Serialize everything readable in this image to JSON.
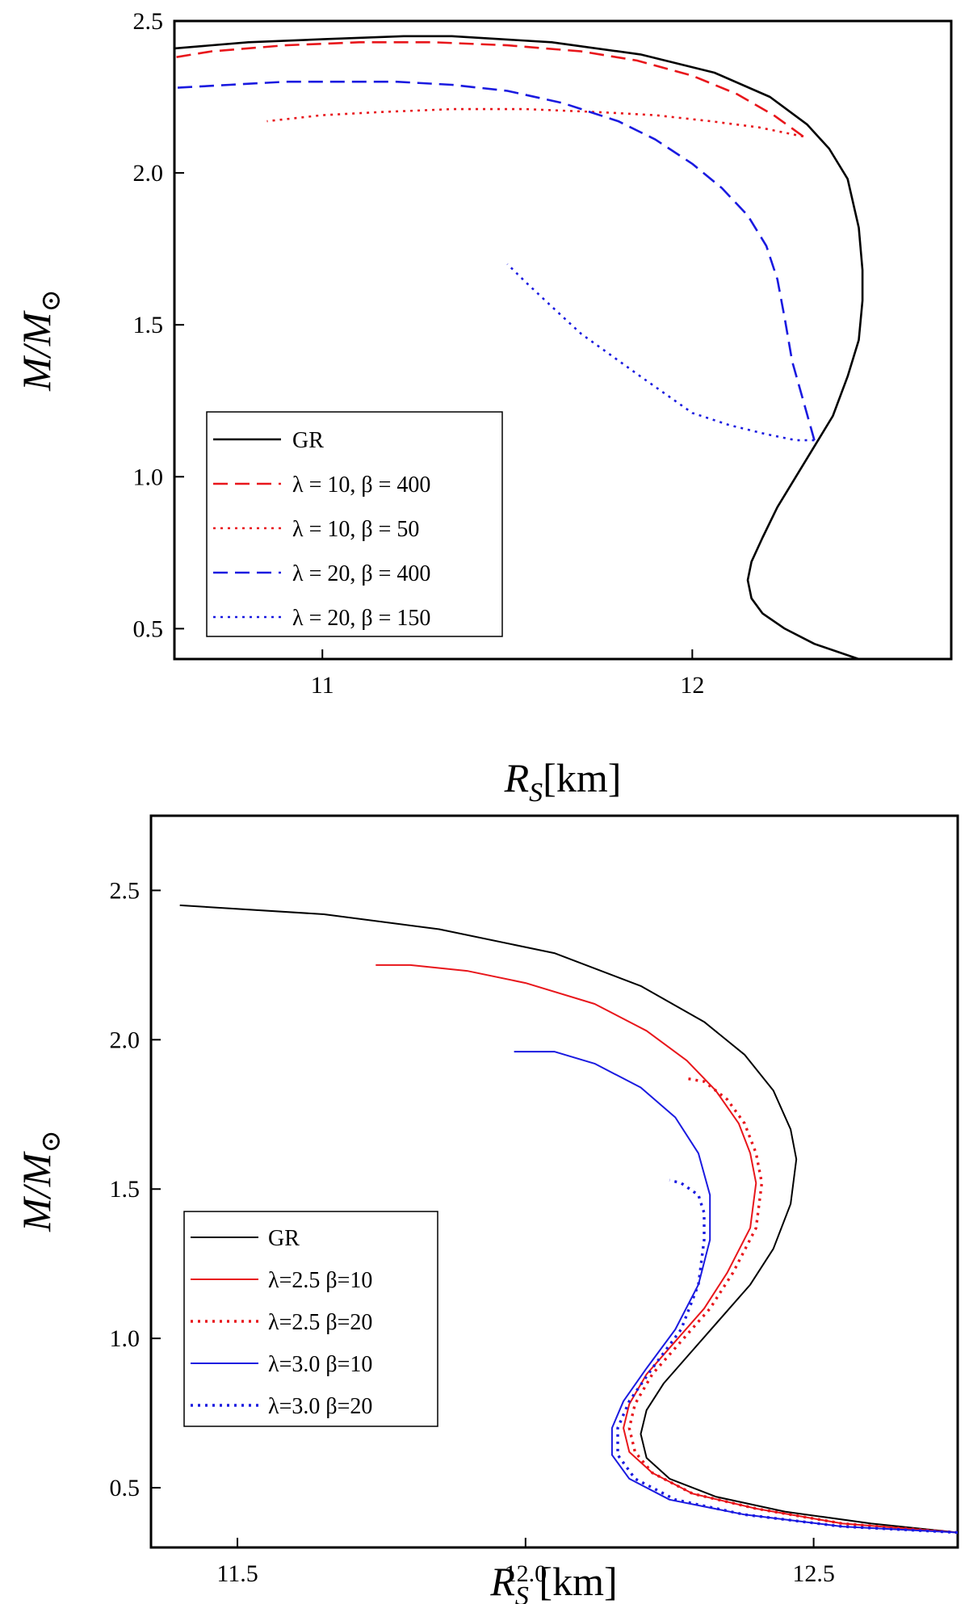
{
  "chart_data": [
    {
      "type": "line",
      "panel": "top",
      "xlabel": {
        "main": "R",
        "sub": "S",
        "unit": "[km]"
      },
      "ylabel": {
        "main": "M/M",
        "sub": "⊙"
      },
      "xlim": [
        10.6,
        12.7
      ],
      "ylim": [
        0.4,
        2.5
      ],
      "xticks": [
        11,
        12
      ],
      "xtick_labels": [
        "11",
        "12"
      ],
      "yticks": [
        0.5,
        1.0,
        1.5,
        2.0,
        2.5
      ],
      "ytick_labels": [
        "0.5",
        "1.0",
        "1.5",
        "2.0",
        "2.5"
      ],
      "legend_position": "lower-left",
      "grid": false,
      "series": [
        {
          "name": "GR",
          "color": "#000000",
          "style": "solid",
          "x": [
            12.45,
            12.33,
            12.25,
            12.19,
            12.16,
            12.15,
            12.16,
            12.19,
            12.23,
            12.28,
            12.33,
            12.38,
            12.42,
            12.45,
            12.46,
            12.46,
            12.45,
            12.42,
            12.37,
            12.31,
            12.21,
            12.06,
            11.86,
            11.62,
            11.35,
            11.22,
            11.0,
            10.8,
            10.6
          ],
          "y": [
            0.4,
            0.45,
            0.5,
            0.55,
            0.6,
            0.66,
            0.72,
            0.8,
            0.9,
            1.0,
            1.1,
            1.2,
            1.33,
            1.45,
            1.58,
            1.68,
            1.82,
            1.98,
            2.08,
            2.16,
            2.25,
            2.33,
            2.39,
            2.43,
            2.45,
            2.45,
            2.44,
            2.43,
            2.41
          ]
        },
        {
          "name": "λ = 10, β = 400",
          "color": "#e8161b",
          "style": "dashed",
          "x": [
            12.3,
            12.22,
            12.12,
            12.0,
            11.85,
            11.7,
            11.5,
            11.3,
            11.1,
            10.9,
            10.7,
            10.6
          ],
          "y": [
            2.12,
            2.19,
            2.26,
            2.32,
            2.37,
            2.4,
            2.42,
            2.43,
            2.43,
            2.42,
            2.4,
            2.38
          ]
        },
        {
          "name": "λ = 10, β = 50",
          "color": "#e8161b",
          "style": "dotted",
          "x": [
            12.3,
            12.18,
            12.05,
            11.9,
            11.75,
            11.55,
            11.35,
            11.15,
            11.0,
            10.85
          ],
          "y": [
            2.12,
            2.15,
            2.17,
            2.19,
            2.2,
            2.21,
            2.21,
            2.2,
            2.19,
            2.17
          ]
        },
        {
          "name": "λ = 20, β = 400",
          "color": "#1a1ae0",
          "style": "dashed",
          "x": [
            12.33,
            12.3,
            12.27,
            12.25,
            12.23,
            12.2,
            12.15,
            12.08,
            12.0,
            11.9,
            11.8,
            11.65,
            11.5,
            11.35,
            11.2,
            11.05,
            10.9,
            10.75,
            10.6
          ],
          "y": [
            1.12,
            1.25,
            1.38,
            1.52,
            1.65,
            1.76,
            1.86,
            1.95,
            2.03,
            2.11,
            2.17,
            2.23,
            2.27,
            2.29,
            2.3,
            2.3,
            2.3,
            2.29,
            2.28
          ]
        },
        {
          "name": "λ = 20, β = 150",
          "color": "#1a1ae0",
          "style": "dotted",
          "x": [
            12.33,
            12.28,
            12.2,
            12.1,
            12.0,
            11.93,
            11.86,
            11.78,
            11.7,
            11.62,
            11.55,
            11.5
          ],
          "y": [
            1.12,
            1.12,
            1.14,
            1.17,
            1.21,
            1.27,
            1.33,
            1.4,
            1.47,
            1.56,
            1.64,
            1.7
          ]
        }
      ]
    },
    {
      "type": "line",
      "panel": "bottom",
      "xlabel": {
        "main": "R",
        "sub": "S",
        "unit": " [km]"
      },
      "ylabel": {
        "main": "M/M",
        "sub": "⊙"
      },
      "xlim": [
        11.35,
        12.75
      ],
      "ylim": [
        0.3,
        2.75
      ],
      "xticks": [
        11.5,
        12.0,
        12.5
      ],
      "xtick_labels": [
        "11.5",
        "12.0",
        "12.5"
      ],
      "yticks": [
        0.5,
        1.0,
        1.5,
        2.0,
        2.5
      ],
      "ytick_labels": [
        "0.5",
        "1.0",
        "1.5",
        "2.0",
        "2.5"
      ],
      "legend_position": "lower-left",
      "grid": false,
      "series": [
        {
          "name": "GR",
          "color": "#000000",
          "style": "solid",
          "x": [
            12.75,
            12.6,
            12.45,
            12.33,
            12.25,
            12.21,
            12.2,
            12.21,
            12.24,
            12.29,
            12.34,
            12.39,
            12.43,
            12.46,
            12.47,
            12.46,
            12.43,
            12.38,
            12.31,
            12.2,
            12.05,
            11.85,
            11.65,
            11.4
          ],
          "y": [
            0.35,
            0.38,
            0.42,
            0.47,
            0.53,
            0.6,
            0.68,
            0.76,
            0.85,
            0.96,
            1.07,
            1.18,
            1.3,
            1.45,
            1.6,
            1.7,
            1.83,
            1.95,
            2.06,
            2.18,
            2.29,
            2.37,
            2.42,
            2.45
          ]
        },
        {
          "name": "λ=2.5 β=10",
          "color": "#e8161b",
          "style": "solid",
          "x": [
            12.75,
            12.55,
            12.4,
            12.29,
            12.22,
            12.18,
            12.17,
            12.18,
            12.21,
            12.26,
            12.31,
            12.35,
            12.39,
            12.4,
            12.39,
            12.37,
            12.33,
            12.28,
            12.21,
            12.12,
            12.0,
            11.9,
            11.8,
            11.74
          ],
          "y": [
            0.35,
            0.38,
            0.43,
            0.48,
            0.55,
            0.62,
            0.7,
            0.78,
            0.88,
            0.99,
            1.1,
            1.22,
            1.37,
            1.52,
            1.62,
            1.72,
            1.83,
            1.93,
            2.03,
            2.12,
            2.19,
            2.23,
            2.25,
            2.25
          ]
        },
        {
          "name": "λ=2.5 β=20",
          "color": "#e8161b",
          "style": "dotted",
          "x": [
            12.75,
            12.55,
            12.4,
            12.29,
            12.22,
            12.19,
            12.18,
            12.19,
            12.22,
            12.27,
            12.32,
            12.36,
            12.4,
            12.41,
            12.4,
            12.38,
            12.35,
            12.31,
            12.28
          ],
          "y": [
            0.35,
            0.38,
            0.43,
            0.48,
            0.55,
            0.62,
            0.7,
            0.78,
            0.88,
            0.99,
            1.1,
            1.22,
            1.37,
            1.52,
            1.62,
            1.72,
            1.8,
            1.86,
            1.87
          ]
        },
        {
          "name": "λ=3.0 β=10",
          "color": "#1a1ae0",
          "style": "solid",
          "x": [
            12.75,
            12.55,
            12.38,
            12.25,
            12.18,
            12.15,
            12.15,
            12.17,
            12.21,
            12.26,
            12.3,
            12.32,
            12.32,
            12.3,
            12.26,
            12.2,
            12.12,
            12.05,
            11.98
          ],
          "y": [
            0.35,
            0.37,
            0.41,
            0.46,
            0.53,
            0.61,
            0.7,
            0.79,
            0.9,
            1.03,
            1.18,
            1.33,
            1.48,
            1.62,
            1.74,
            1.84,
            1.92,
            1.96,
            1.96
          ]
        },
        {
          "name": "λ=3.0 β=20",
          "color": "#1a1ae0",
          "style": "dotted",
          "x": [
            12.75,
            12.55,
            12.38,
            12.26,
            12.19,
            12.16,
            12.16,
            12.18,
            12.22,
            12.27,
            12.3,
            12.31,
            12.31,
            12.3,
            12.27,
            12.25
          ],
          "y": [
            0.35,
            0.37,
            0.41,
            0.46,
            0.53,
            0.61,
            0.7,
            0.79,
            0.9,
            1.03,
            1.18,
            1.33,
            1.42,
            1.48,
            1.52,
            1.53
          ]
        }
      ]
    }
  ]
}
